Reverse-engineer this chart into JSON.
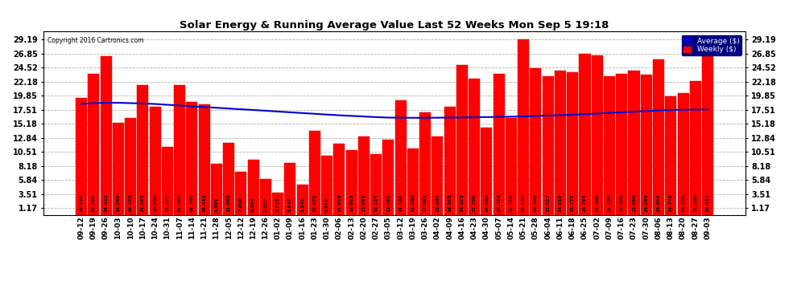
{
  "title": "Solar Energy & Running Average Value Last 52 Weeks Mon Sep 5 19:18",
  "copyright": "Copyright 2016 Cartronics.com",
  "bar_color": "#FF0000",
  "avg_line_color": "#0000CC",
  "background_color": "#FFFFFF",
  "plot_bg_color": "#FFFFFF",
  "yticks": [
    1.17,
    3.51,
    5.84,
    8.18,
    10.51,
    12.84,
    15.18,
    17.51,
    19.85,
    22.18,
    24.52,
    26.85,
    29.19
  ],
  "ylim": [
    0,
    30.5
  ],
  "legend_avg_color": "#0000CC",
  "legend_weekly_color": "#FF0000",
  "categories": [
    "09-12",
    "09-19",
    "09-26",
    "10-03",
    "10-10",
    "10-17",
    "10-24",
    "10-31",
    "11-07",
    "11-14",
    "11-21",
    "11-28",
    "12-05",
    "12-12",
    "12-19",
    "12-26",
    "01-02",
    "01-09",
    "01-16",
    "01-23",
    "01-30",
    "02-06",
    "02-13",
    "02-20",
    "02-27",
    "03-05",
    "03-12",
    "03-19",
    "03-26",
    "04-02",
    "04-09",
    "04-16",
    "04-23",
    "04-30",
    "05-07",
    "05-14",
    "05-21",
    "05-28",
    "06-04",
    "06-11",
    "06-18",
    "06-25",
    "07-02",
    "07-09",
    "07-16",
    "07-23",
    "07-30",
    "08-06",
    "08-13",
    "08-20",
    "08-27",
    "09-03"
  ],
  "weekly_values": [
    19.519,
    23.492,
    26.422,
    15.299,
    16.15,
    21.585,
    18.029,
    11.377,
    21.597,
    18.795,
    18.413,
    8.501,
    11.969,
    7.208,
    9.244,
    6.057,
    3.718,
    8.647,
    5.145,
    13.973,
    9.912,
    11.938,
    10.803,
    13.081,
    10.154,
    12.492,
    19.108,
    11.05,
    17.093,
    13.049,
    18.065,
    24.925,
    22.7,
    14.59,
    23.424,
    16.108,
    29.188,
    24.396,
    23.027,
    24.019,
    23.773,
    26.796,
    26.569,
    23.15,
    23.5,
    23.98,
    23.285,
    25.831,
    19.746,
    20.23,
    22.28,
    26.417
  ],
  "avg_values": [
    18.5,
    18.6,
    18.68,
    18.68,
    18.62,
    18.56,
    18.48,
    18.35,
    18.22,
    18.1,
    17.97,
    17.85,
    17.72,
    17.6,
    17.48,
    17.36,
    17.22,
    17.1,
    16.97,
    16.85,
    16.72,
    16.6,
    16.5,
    16.4,
    16.3,
    16.22,
    16.2,
    16.18,
    16.18,
    16.2,
    16.22,
    16.24,
    16.28,
    16.3,
    16.33,
    16.37,
    16.42,
    16.48,
    16.55,
    16.62,
    16.7,
    16.78,
    16.88,
    17.0,
    17.1,
    17.2,
    17.3,
    17.4,
    17.48,
    17.52,
    17.55,
    17.58
  ]
}
